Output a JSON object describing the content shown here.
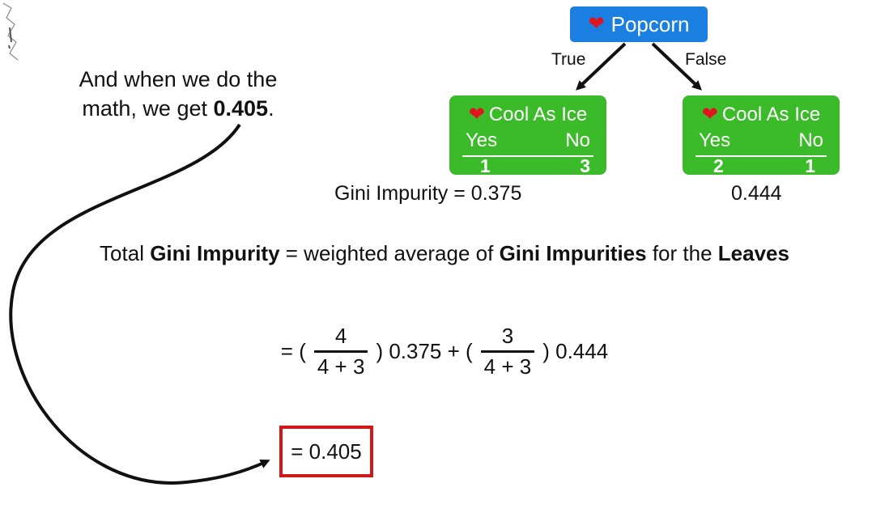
{
  "caption": {
    "line1": "And when we do the",
    "line2_prefix": "math, we get ",
    "line2_value": "0.405",
    "line2_suffix": "."
  },
  "tree": {
    "root_label": "Popcorn",
    "edge_true": "True",
    "edge_false": "False",
    "left_leaf": {
      "title": "Cool As Ice",
      "yes_label": "Yes",
      "no_label": "No",
      "yes_value": "1",
      "no_value": "3",
      "gini": "Gini Impurity = 0.375"
    },
    "right_leaf": {
      "title": "Cool As Ice",
      "yes_label": "Yes",
      "no_label": "No",
      "yes_value": "2",
      "no_value": "1",
      "gini": "0.444"
    }
  },
  "total": {
    "p1": "Total ",
    "b1": "Gini Impurity",
    "p2": " = weighted average of ",
    "b2": "Gini Impurities",
    "p3": " for the ",
    "b3": "Leaves"
  },
  "formula": {
    "start": "= (",
    "frac1_num": "4",
    "frac1_den": "4 + 3",
    "mid": ") 0.375 + (",
    "frac2_num": "3",
    "frac2_den": "4 + 3",
    "end": ") 0.444"
  },
  "result": "= 0.405",
  "colors": {
    "root": "#1a7fe0",
    "leaf": "#3bbb2a",
    "result_border": "#d01818",
    "heart": "#e0141e"
  },
  "icons": {
    "heart": "heart-icon",
    "arrow": "curved-arrow-icon"
  }
}
